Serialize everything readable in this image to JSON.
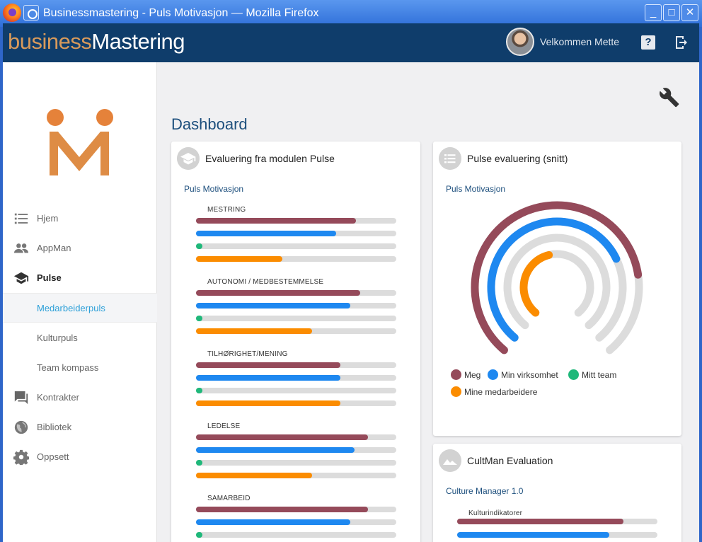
{
  "window": {
    "title": "Businessmastering - Puls Motivasjon — Mozilla Firefox",
    "buttons": {
      "minimize": "_",
      "maximize": "□",
      "close": "✕"
    }
  },
  "header": {
    "brand_part1": "business",
    "brand_part2": "Mastering",
    "welcome": "Velkommen Mette",
    "help_symbol": "?"
  },
  "sidebar": {
    "items": [
      {
        "label": "Hjem",
        "icon": "list-icon"
      },
      {
        "label": "AppMan",
        "icon": "people-icon"
      },
      {
        "label": "Pulse",
        "icon": "graduation-cap-icon",
        "active": true
      },
      {
        "label": "Medarbeiderpuls",
        "sub": true,
        "active": true
      },
      {
        "label": "Kulturpuls",
        "sub": true
      },
      {
        "label": "Team kompass",
        "sub": true
      },
      {
        "label": "Kontrakter",
        "icon": "chat-icon"
      },
      {
        "label": "Bibliotek",
        "icon": "globe-icon"
      },
      {
        "label": "Oppsett",
        "icon": "gear-icon"
      }
    ]
  },
  "main": {
    "title": "Dashboard"
  },
  "colors": {
    "meg": "#954a5a",
    "virksomhet": "#1e88f0",
    "team": "#1fb87a",
    "medarbeidere": "#fb8c00",
    "track": "#dcdcdc"
  },
  "cards": {
    "pulse_eval": {
      "title": "Evaluering fra modulen Pulse",
      "subtitle": "Puls Motivasjon",
      "groups": [
        {
          "label": "MESTRING",
          "values": [
            0.8,
            0.7,
            0.02,
            0.43
          ]
        },
        {
          "label": "AUTONOMI / MEDBESTEMMELSE",
          "values": [
            0.82,
            0.77,
            0.02,
            0.58
          ]
        },
        {
          "label": "TILHØRIGHET/MENING",
          "values": [
            0.72,
            0.72,
            0.02,
            0.72
          ]
        },
        {
          "label": "LEDELSE",
          "values": [
            0.86,
            0.79,
            0.02,
            0.58
          ]
        },
        {
          "label": "SAMARBEID",
          "values": [
            0.86,
            0.77,
            0.02,
            null
          ]
        }
      ]
    },
    "pulse_avg": {
      "title": "Pulse evaluering (snitt)",
      "subtitle": "Puls Motivasjon",
      "rings": [
        0.79,
        0.73,
        0.0,
        0.45
      ],
      "legend": [
        "Meg",
        "Min virksomhet",
        "Mitt team",
        "Mine medarbeidere"
      ]
    },
    "cultman": {
      "title": "CultMan Evaluation",
      "subtitle": "Culture Manager 1.0",
      "group_label": "Kulturindikatorer",
      "values": [
        0.83,
        0.76
      ]
    }
  }
}
